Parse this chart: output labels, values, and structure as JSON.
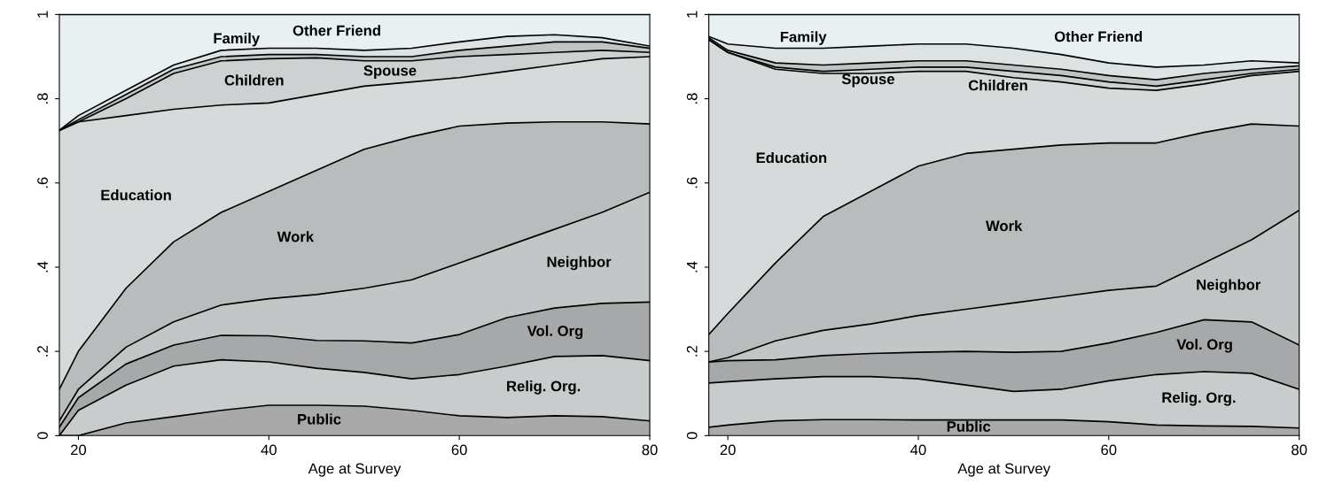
{
  "chart_data": [
    {
      "type": "area",
      "stacked": true,
      "xlabel": "Age at Survey",
      "x": [
        18,
        20,
        25,
        30,
        35,
        40,
        45,
        50,
        55,
        60,
        65,
        70,
        75,
        80
      ],
      "xlim": [
        18,
        80
      ],
      "ylim": [
        0,
        1
      ],
      "xticks": [
        20,
        40,
        60,
        80
      ],
      "yticks": [
        0,
        {
          "value": 0.2,
          "label": ".2"
        },
        {
          "value": 0.4,
          "label": ".4"
        },
        {
          "value": 0.6,
          "label": ".6"
        },
        {
          "value": 0.8,
          "label": ".8"
        },
        1
      ],
      "grid": false,
      "legend": false,
      "series": [
        {
          "name": "Public",
          "color": "#a9a9a9",
          "values": [
            0,
            0,
            0.03,
            0.045,
            0.06,
            0.072,
            0.072,
            0.07,
            0.06,
            0.047,
            0.043,
            0.047,
            0.045,
            0.035
          ]
        },
        {
          "name": "Relig. Org.",
          "color": "#c9cccd",
          "values": [
            0,
            0.06,
            0.09,
            0.12,
            0.12,
            0.103,
            0.088,
            0.08,
            0.075,
            0.098,
            0.122,
            0.141,
            0.145,
            0.143
          ]
        },
        {
          "name": "Vol. Org",
          "color": "#a6a8a9",
          "values": [
            0.02,
            0.03,
            0.05,
            0.05,
            0.058,
            0.062,
            0.066,
            0.075,
            0.085,
            0.095,
            0.115,
            0.115,
            0.124,
            0.139
          ]
        },
        {
          "name": "Neighbor",
          "color": "#c3c6c7",
          "values": [
            0.015,
            0.02,
            0.04,
            0.055,
            0.072,
            0.088,
            0.109,
            0.125,
            0.15,
            0.17,
            0.17,
            0.187,
            0.216,
            0.261
          ]
        },
        {
          "name": "Work",
          "color": "#b9bcbd",
          "values": [
            0.075,
            0.09,
            0.14,
            0.19,
            0.22,
            0.255,
            0.295,
            0.33,
            0.34,
            0.325,
            0.292,
            0.255,
            0.215,
            0.162
          ]
        },
        {
          "name": "Education",
          "color": "#d6dadb",
          "values": [
            0.615,
            0.545,
            0.41,
            0.315,
            0.255,
            0.21,
            0.18,
            0.15,
            0.13,
            0.115,
            0.123,
            0.135,
            0.15,
            0.16
          ]
        },
        {
          "name": "Children",
          "color": "#cdd1d2",
          "values": [
            0,
            0,
            0.04,
            0.085,
            0.105,
            0.105,
            0.087,
            0.06,
            0.05,
            0.05,
            0.04,
            0.03,
            0.02,
            0.01
          ]
        },
        {
          "name": "Spouse",
          "color": "#c0c4c5",
          "values": [
            0,
            0.005,
            0.01,
            0.01,
            0.01,
            0.01,
            0.008,
            0.01,
            0.01,
            0.015,
            0.02,
            0.025,
            0.02,
            0.01
          ]
        },
        {
          "name": "Family",
          "color": "#dde2e3",
          "values": [
            0,
            0.01,
            0.01,
            0.01,
            0.015,
            0.015,
            0.015,
            0.015,
            0.02,
            0.02,
            0.023,
            0.017,
            0.01,
            0.005
          ]
        },
        {
          "name": "Other Friend",
          "color": "#e9f0f2",
          "values": [
            0.275,
            0.24,
            0.18,
            0.12,
            0.085,
            0.08,
            0.08,
            0.085,
            0.08,
            0.065,
            0.052,
            0.048,
            0.055,
            0.075
          ]
        }
      ]
    },
    {
      "type": "area",
      "stacked": true,
      "xlabel": "Age at Survey",
      "x": [
        18,
        20,
        25,
        30,
        35,
        40,
        45,
        50,
        55,
        60,
        65,
        70,
        75,
        80
      ],
      "xlim": [
        18,
        80
      ],
      "ylim": [
        0,
        1
      ],
      "xticks": [
        20,
        40,
        60,
        80
      ],
      "yticks": [
        0,
        {
          "value": 0.2,
          "label": ".2"
        },
        {
          "value": 0.4,
          "label": ".4"
        },
        {
          "value": 0.6,
          "label": ".6"
        },
        {
          "value": 0.8,
          "label": ".8"
        },
        1
      ],
      "grid": false,
      "legend": false,
      "series": [
        {
          "name": "Public",
          "color": "#a9a9a9",
          "values": [
            0.02,
            0.025,
            0.035,
            0.038,
            0.038,
            0.037,
            0.037,
            0.037,
            0.037,
            0.033,
            0.025,
            0.023,
            0.022,
            0.018
          ]
        },
        {
          "name": "Relig. Org.",
          "color": "#c9cccd",
          "values": [
            0.105,
            0.103,
            0.1,
            0.102,
            0.102,
            0.098,
            0.083,
            0.068,
            0.073,
            0.097,
            0.12,
            0.129,
            0.126,
            0.092
          ]
        },
        {
          "name": "Vol. Org",
          "color": "#a6a8a9",
          "values": [
            0.05,
            0.05,
            0.045,
            0.05,
            0.055,
            0.063,
            0.08,
            0.093,
            0.09,
            0.09,
            0.1,
            0.123,
            0.122,
            0.105
          ]
        },
        {
          "name": "Neighbor",
          "color": "#c3c6c7",
          "values": [
            0,
            0.007,
            0.045,
            0.06,
            0.07,
            0.087,
            0.1,
            0.117,
            0.13,
            0.125,
            0.11,
            0.135,
            0.195,
            0.32
          ]
        },
        {
          "name": "Work",
          "color": "#b9bcbd",
          "values": [
            0.065,
            0.105,
            0.185,
            0.27,
            0.315,
            0.355,
            0.37,
            0.365,
            0.36,
            0.35,
            0.34,
            0.31,
            0.275,
            0.2
          ]
        },
        {
          "name": "Education",
          "color": "#d6dadb",
          "values": [
            0.7,
            0.62,
            0.46,
            0.34,
            0.28,
            0.225,
            0.195,
            0.17,
            0.15,
            0.13,
            0.125,
            0.115,
            0.115,
            0.13
          ]
        },
        {
          "name": "Children",
          "color": "#cdd1d2",
          "values": [
            0,
            0,
            0.005,
            0.005,
            0.01,
            0.01,
            0.01,
            0.015,
            0.015,
            0.015,
            0.01,
            0.01,
            0.005,
            0.005
          ]
        },
        {
          "name": "Spouse",
          "color": "#c0c4c5",
          "values": [
            0.005,
            0.005,
            0.01,
            0.015,
            0.015,
            0.015,
            0.015,
            0.015,
            0.015,
            0.015,
            0.015,
            0.015,
            0.01,
            0.008
          ]
        },
        {
          "name": "Family",
          "color": "#dde2e3",
          "values": [
            0.003,
            0.015,
            0.035,
            0.04,
            0.04,
            0.04,
            0.04,
            0.04,
            0.035,
            0.03,
            0.03,
            0.02,
            0.02,
            0.007
          ]
        },
        {
          "name": "Other Friend",
          "color": "#e9f0f2",
          "values": [
            0.052,
            0.07,
            0.08,
            0.08,
            0.075,
            0.07,
            0.07,
            0.08,
            0.095,
            0.115,
            0.125,
            0.12,
            0.11,
            0.115
          ]
        }
      ]
    }
  ]
}
